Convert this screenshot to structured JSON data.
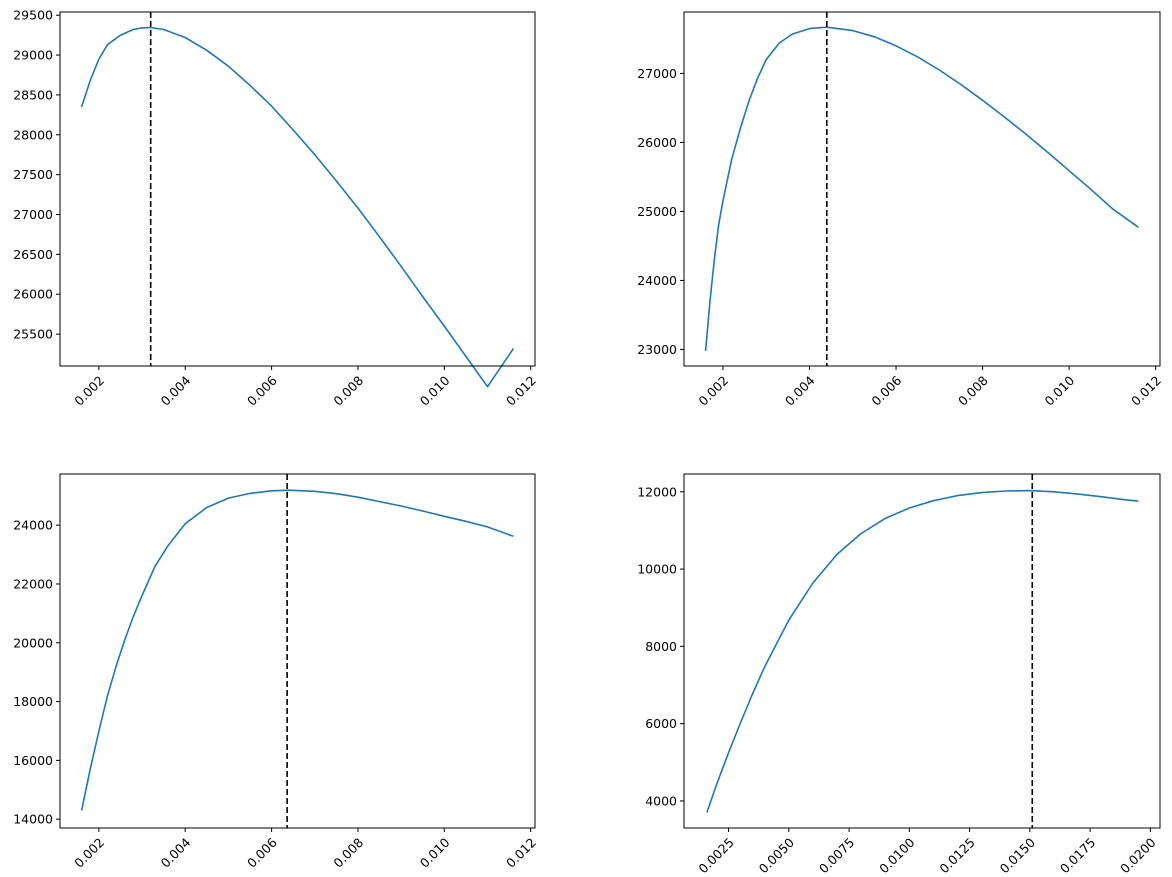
{
  "colors": {
    "series": "#1f77b4",
    "marker_line": "#000000",
    "axes": "#000000",
    "background": "#ffffff"
  },
  "chart_data": [
    {
      "type": "line",
      "title": "",
      "xlabel": "",
      "ylabel": "",
      "xlim": [
        0.0011,
        0.0121
      ],
      "ylim": [
        25100,
        29540
      ],
      "xticks": [
        0.002,
        0.004,
        0.006,
        0.008,
        0.01,
        0.012
      ],
      "xtick_labels": [
        "0.002",
        "0.004",
        "0.006",
        "0.008",
        "0.010",
        "0.012"
      ],
      "yticks": [
        25500,
        26000,
        26500,
        27000,
        27500,
        28000,
        28500,
        29000,
        29500
      ],
      "ytick_labels": [
        "25500",
        "26000",
        "26500",
        "27000",
        "27500",
        "28000",
        "28500",
        "29000",
        "29500"
      ],
      "vertical_line_x": 0.0032,
      "grid": false,
      "series": [
        {
          "x": [
            0.0016,
            0.0018,
            0.002,
            0.0022,
            0.0025,
            0.0028,
            0.003,
            0.0032,
            0.0035,
            0.004,
            0.0045,
            0.005,
            0.0055,
            0.006,
            0.0065,
            0.007,
            0.0075,
            0.008,
            0.0085,
            0.009,
            0.0095,
            0.01,
            0.0105,
            0.011,
            0.0116
          ],
          "values": [
            28350,
            28680,
            28950,
            29130,
            29250,
            29320,
            29340,
            29345,
            29320,
            29220,
            29060,
            28860,
            28620,
            28360,
            28060,
            27750,
            27420,
            27080,
            26720,
            26350,
            25970,
            25600,
            25220,
            24840,
            25320
          ]
        }
      ]
    },
    {
      "type": "line",
      "title": "",
      "xlabel": "",
      "ylabel": "",
      "xlim": [
        0.0011,
        0.0121
      ],
      "ylim": [
        22760,
        27890
      ],
      "xticks": [
        0.002,
        0.004,
        0.006,
        0.008,
        0.01,
        0.012
      ],
      "xtick_labels": [
        "0.002",
        "0.004",
        "0.006",
        "0.008",
        "0.010",
        "0.012"
      ],
      "yticks": [
        23000,
        24000,
        25000,
        26000,
        27000
      ],
      "ytick_labels": [
        "23000",
        "24000",
        "25000",
        "26000",
        "27000"
      ],
      "vertical_line_x": 0.0044,
      "grid": false,
      "series": [
        {
          "x": [
            0.0016,
            0.0017,
            0.0018,
            0.0019,
            0.002,
            0.0022,
            0.0024,
            0.0026,
            0.0028,
            0.003,
            0.0033,
            0.0036,
            0.004,
            0.0044,
            0.005,
            0.0055,
            0.006,
            0.0065,
            0.007,
            0.0075,
            0.008,
            0.0085,
            0.009,
            0.0095,
            0.01,
            0.0105,
            0.011,
            0.0116
          ],
          "values": [
            22980,
            23700,
            24300,
            24800,
            25150,
            25750,
            26200,
            26600,
            26930,
            27200,
            27440,
            27570,
            27650,
            27670,
            27620,
            27530,
            27400,
            27240,
            27050,
            26840,
            26610,
            26370,
            26120,
            25860,
            25590,
            25320,
            25040,
            24770
          ]
        }
      ]
    },
    {
      "type": "line",
      "title": "",
      "xlabel": "",
      "ylabel": "",
      "xlim": [
        0.0011,
        0.0121
      ],
      "ylim": [
        13700,
        25740
      ],
      "xticks": [
        0.002,
        0.004,
        0.006,
        0.008,
        0.01,
        0.012
      ],
      "xtick_labels": [
        "0.002",
        "0.004",
        "0.006",
        "0.008",
        "0.010",
        "0.012"
      ],
      "yticks": [
        14000,
        16000,
        18000,
        20000,
        22000,
        24000
      ],
      "ytick_labels": [
        "14000",
        "16000",
        "18000",
        "20000",
        "22000",
        "24000"
      ],
      "vertical_line_x": 0.00636,
      "grid": false,
      "series": [
        {
          "x": [
            0.0016,
            0.0018,
            0.002,
            0.0022,
            0.0024,
            0.0026,
            0.0028,
            0.003,
            0.0033,
            0.0036,
            0.004,
            0.0045,
            0.005,
            0.0055,
            0.006,
            0.0064,
            0.007,
            0.0075,
            0.008,
            0.0085,
            0.009,
            0.0095,
            0.01,
            0.0105,
            0.011,
            0.0116
          ],
          "values": [
            14300,
            15700,
            17000,
            18200,
            19200,
            20100,
            20900,
            21600,
            22600,
            23300,
            24050,
            24600,
            24920,
            25080,
            25170,
            25190,
            25150,
            25070,
            24950,
            24800,
            24650,
            24480,
            24300,
            24130,
            23940,
            23620
          ]
        }
      ]
    },
    {
      "type": "line",
      "title": "",
      "xlabel": "",
      "ylabel": "",
      "xlim": [
        0.00065,
        0.0204
      ],
      "ylim": [
        3300,
        12460
      ],
      "xticks": [
        0.0025,
        0.005,
        0.0075,
        0.01,
        0.0125,
        0.015,
        0.0175,
        0.02
      ],
      "xtick_labels": [
        "0.0025",
        "0.0050",
        "0.0075",
        "0.0100",
        "0.0125",
        "0.0150",
        "0.0175",
        "0.0200"
      ],
      "yticks": [
        4000,
        6000,
        8000,
        10000,
        12000
      ],
      "ytick_labels": [
        "4000",
        "6000",
        "8000",
        "10000",
        "12000"
      ],
      "vertical_line_x": 0.0151,
      "grid": false,
      "series": [
        {
          "x": [
            0.0016,
            0.002,
            0.0025,
            0.003,
            0.0035,
            0.004,
            0.005,
            0.006,
            0.007,
            0.008,
            0.009,
            0.01,
            0.011,
            0.012,
            0.013,
            0.014,
            0.015,
            0.016,
            0.017,
            0.018,
            0.019,
            0.0195
          ],
          "values": [
            3700,
            4420,
            5250,
            6030,
            6780,
            7470,
            8680,
            9640,
            10380,
            10920,
            11310,
            11580,
            11770,
            11900,
            11980,
            12020,
            12030,
            12000,
            11940,
            11870,
            11790,
            11760
          ]
        }
      ]
    }
  ]
}
